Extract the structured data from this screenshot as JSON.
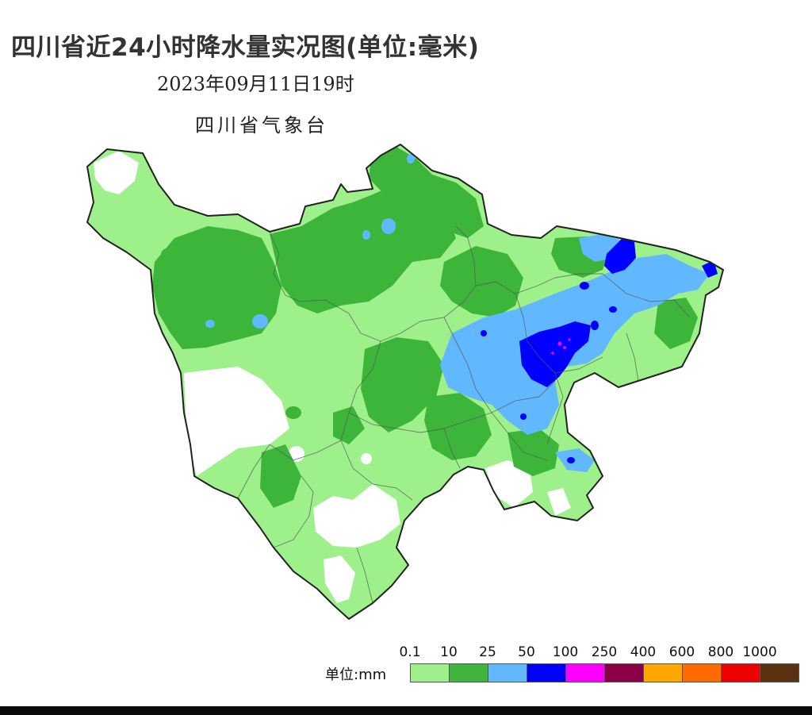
{
  "title": "四川省近24小时降水量实况图(单位:毫米)",
  "datetime": "2023年09月11日19时",
  "agency": "四川省气象台",
  "legend": {
    "unit_label": "单位:mm",
    "ticks": [
      "0.1",
      "10",
      "25",
      "50",
      "100",
      "250",
      "400",
      "600",
      "800",
      "1000"
    ],
    "colors": [
      "#9df08a",
      "#3db53a",
      "#62b8ff",
      "#0000ff",
      "#ff00ff",
      "#8a0046",
      "#ffa800",
      "#ff6a00",
      "#ee0000",
      "#5a3210"
    ]
  },
  "map": {
    "region": "四川省",
    "province_fill": "#9df08a",
    "moderate_color": "#3db53a",
    "heavy_color": "#62b8ff",
    "rainstorm_color": "#0000ff",
    "extreme_color": "#ff00ff",
    "no_rain_color": "#ffffff"
  }
}
